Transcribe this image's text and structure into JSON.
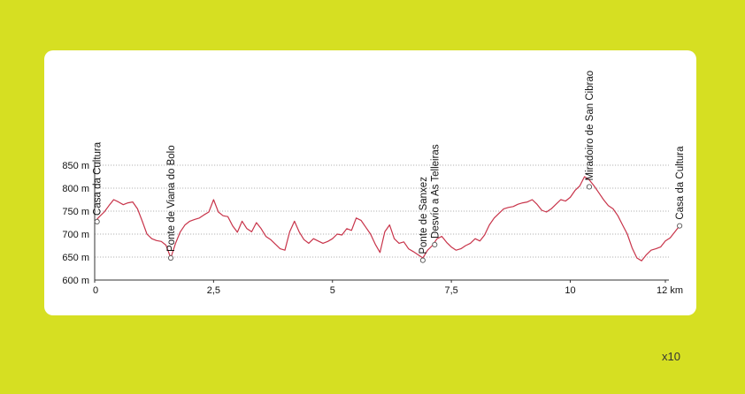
{
  "scale_note": "x10",
  "chart_data": {
    "type": "line",
    "title": "",
    "xlabel": "",
    "ylabel": "",
    "xlim": [
      0,
      12
    ],
    "ylim": [
      600,
      850
    ],
    "y_ticks": [
      600,
      650,
      700,
      750,
      800,
      850
    ],
    "y_tick_labels": [
      "600 m",
      "650 m",
      "700 m",
      "750 m",
      "800 m",
      "850 m"
    ],
    "x_ticks": [
      0,
      2.5,
      5,
      7.5,
      10,
      12
    ],
    "x_tick_labels": [
      "0",
      "2,5",
      "5",
      "7,5",
      "10",
      "12 km"
    ],
    "grid": "horizontal dotted",
    "line_color": "#c8344a",
    "series": [
      {
        "x": [
          0,
          0.1,
          0.2,
          0.3,
          0.4,
          0.5,
          0.6,
          0.7,
          0.8,
          0.9,
          1.0,
          1.1,
          1.2,
          1.3,
          1.4,
          1.5,
          1.6,
          1.7,
          1.8,
          1.9,
          2.0,
          2.1,
          2.2,
          2.3,
          2.4,
          2.5,
          2.6,
          2.7,
          2.8,
          2.9,
          3.0,
          3.1,
          3.2,
          3.3,
          3.4,
          3.5,
          3.6,
          3.7,
          3.8,
          3.9,
          4.0,
          4.1,
          4.2,
          4.3,
          4.4,
          4.5,
          4.6,
          4.7,
          4.8,
          4.9,
          5.0,
          5.1,
          5.2,
          5.3,
          5.4,
          5.5,
          5.6,
          5.7,
          5.8,
          5.9,
          6.0,
          6.1,
          6.2,
          6.3,
          6.4,
          6.5,
          6.6,
          6.7,
          6.8,
          6.9,
          7.0,
          7.1,
          7.2,
          7.3,
          7.4,
          7.5,
          7.6,
          7.7,
          7.8,
          7.9,
          8.0,
          8.1,
          8.2,
          8.3,
          8.4,
          8.5,
          8.6,
          8.7,
          8.8,
          8.9,
          9.0,
          9.1,
          9.2,
          9.3,
          9.4,
          9.5,
          9.6,
          9.7,
          9.8,
          9.9,
          10.0,
          10.1,
          10.2,
          10.3,
          10.4,
          10.5,
          10.6,
          10.7,
          10.8,
          10.9,
          11.0,
          11.1,
          11.2,
          11.3,
          11.4,
          11.5,
          11.6,
          11.7,
          11.8,
          11.9,
          12.0,
          12.1,
          12.2,
          12.3
        ],
        "y": [
          727,
          738,
          748,
          762,
          775,
          770,
          764,
          768,
          770,
          755,
          728,
          700,
          690,
          686,
          684,
          676,
          648,
          680,
          705,
          720,
          728,
          732,
          735,
          742,
          748,
          775,
          748,
          740,
          738,
          718,
          704,
          728,
          712,
          705,
          725,
          712,
          695,
          688,
          678,
          668,
          665,
          705,
          728,
          705,
          688,
          680,
          690,
          685,
          680,
          684,
          690,
          700,
          698,
          712,
          708,
          735,
          730,
          715,
          700,
          678,
          660,
          705,
          720,
          690,
          680,
          683,
          668,
          662,
          655,
          648,
          665,
          675,
          690,
          695,
          682,
          672,
          665,
          668,
          675,
          680,
          690,
          685,
          698,
          720,
          735,
          745,
          755,
          758,
          760,
          765,
          768,
          770,
          775,
          765,
          752,
          748,
          755,
          765,
          775,
          772,
          780,
          795,
          805,
          825,
          818,
          805,
          790,
          775,
          762,
          755,
          740,
          720,
          700,
          670,
          648,
          642,
          655,
          665,
          668,
          672,
          685,
          692,
          705,
          718
        ]
      }
    ],
    "waypoints": [
      {
        "x": 0.05,
        "y": 727,
        "label": "Casa da Cultura"
      },
      {
        "x": 1.6,
        "y": 648,
        "label": "Ponte de Viana do Bolo"
      },
      {
        "x": 6.9,
        "y": 643,
        "label": "Ponte de Sanxez"
      },
      {
        "x": 7.15,
        "y": 677,
        "label": "Desvío a As Telleiras"
      },
      {
        "x": 10.4,
        "y": 803,
        "label": "Miradoiro de San Cibrao"
      },
      {
        "x": 12.3,
        "y": 718,
        "label": "Casa da Cultura"
      }
    ]
  }
}
